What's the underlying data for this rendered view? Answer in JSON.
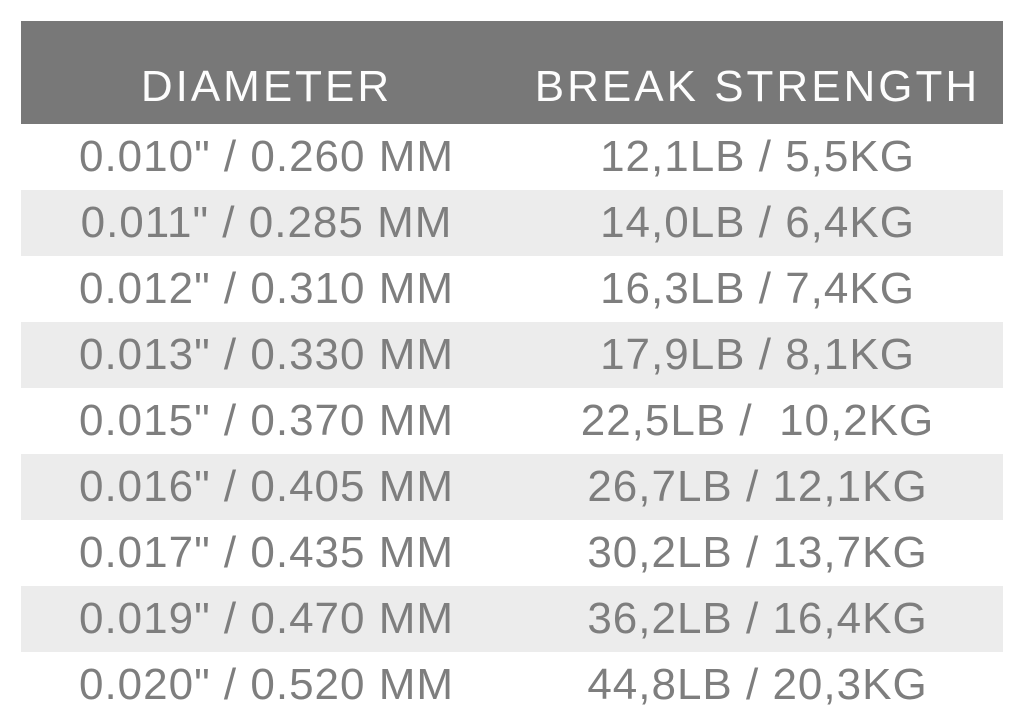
{
  "colors": {
    "header_bg": "#787878",
    "header_text": "#fdfdfd",
    "body_text": "#7e7e7e",
    "stripe_bg": "#ececec",
    "page_bg": "#ffffff"
  },
  "table": {
    "headers": [
      "DIAMETER",
      "BREAK STRENGTH"
    ],
    "rows": [
      [
        "0.010\" / 0.260 MM",
        "12,1LB / 5,5KG"
      ],
      [
        "0.011\" / 0.285 MM",
        "14,0LB / 6,4KG"
      ],
      [
        "0.012\" / 0.310 MM",
        "16,3LB / 7,4KG"
      ],
      [
        "0.013\" / 0.330 MM",
        "17,9LB / 8,1KG"
      ],
      [
        "0.015\" / 0.370 MM",
        "22,5LB /  10,2KG"
      ],
      [
        "0.016\" / 0.405 MM",
        "26,7LB / 12,1KG"
      ],
      [
        "0.017\" / 0.435 MM",
        "30,2LB / 13,7KG"
      ],
      [
        "0.019\" / 0.470 MM",
        "36,2LB / 16,4KG"
      ],
      [
        "0.020\" / 0.520 MM",
        "44,8LB / 20,3KG"
      ]
    ]
  },
  "chart_data": {
    "type": "table",
    "columns": [
      "DIAMETER",
      "BREAK STRENGTH"
    ],
    "rows": [
      {
        "diameter_in": 0.01,
        "diameter_mm": 0.26,
        "break_lb": 12.1,
        "break_kg": 5.5
      },
      {
        "diameter_in": 0.011,
        "diameter_mm": 0.285,
        "break_lb": 14.0,
        "break_kg": 6.4
      },
      {
        "diameter_in": 0.012,
        "diameter_mm": 0.31,
        "break_lb": 16.3,
        "break_kg": 7.4
      },
      {
        "diameter_in": 0.013,
        "diameter_mm": 0.33,
        "break_lb": 17.9,
        "break_kg": 8.1
      },
      {
        "diameter_in": 0.015,
        "diameter_mm": 0.37,
        "break_lb": 22.5,
        "break_kg": 10.2
      },
      {
        "diameter_in": 0.016,
        "diameter_mm": 0.405,
        "break_lb": 26.7,
        "break_kg": 12.1
      },
      {
        "diameter_in": 0.017,
        "diameter_mm": 0.435,
        "break_lb": 30.2,
        "break_kg": 13.7
      },
      {
        "diameter_in": 0.019,
        "diameter_mm": 0.47,
        "break_lb": 36.2,
        "break_kg": 16.4
      },
      {
        "diameter_in": 0.02,
        "diameter_mm": 0.52,
        "break_lb": 44.8,
        "break_kg": 20.3
      }
    ]
  }
}
